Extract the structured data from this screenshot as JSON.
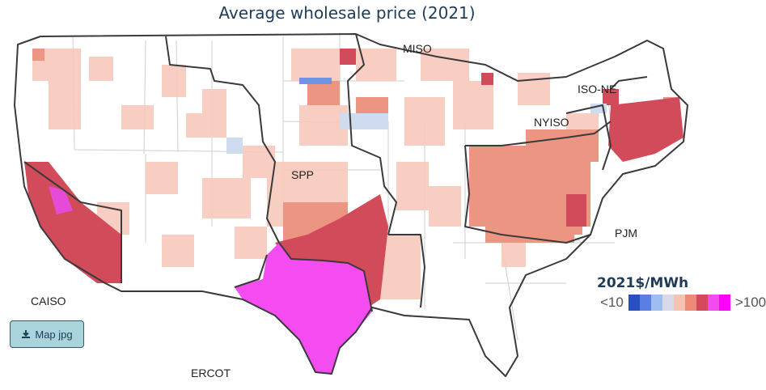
{
  "title": "Average wholesale price (2021)",
  "regions": [
    {
      "key": "miso",
      "label": "MISO"
    },
    {
      "key": "iso-ne",
      "label": "ISO-NE"
    },
    {
      "key": "nyiso",
      "label": "NYISO"
    },
    {
      "key": "spp",
      "label": "SPP"
    },
    {
      "key": "pjm",
      "label": "PJM"
    },
    {
      "key": "caiso",
      "label": "CAISO"
    },
    {
      "key": "ercot",
      "label": "ERCOT"
    }
  ],
  "legend": {
    "title": "2021$/MWh",
    "low_label": "<10",
    "high_label": ">100",
    "colors": [
      "#2a4fc0",
      "#5b7fe0",
      "#9dbcf0",
      "#d9d9e8",
      "#f6c3b3",
      "#ee8a78",
      "#d44a5c",
      "#f24cf0",
      "#ff00ff"
    ]
  },
  "download_button": {
    "label": "Map jpg",
    "icon": "download-icon"
  },
  "price_colors": {
    "light": "#f7c9bb",
    "medium": "#ec9583",
    "high": "#d24b5a",
    "very_high": "#f54cf2",
    "cool": "#cfdcf0",
    "blue": "#6f95e2"
  }
}
